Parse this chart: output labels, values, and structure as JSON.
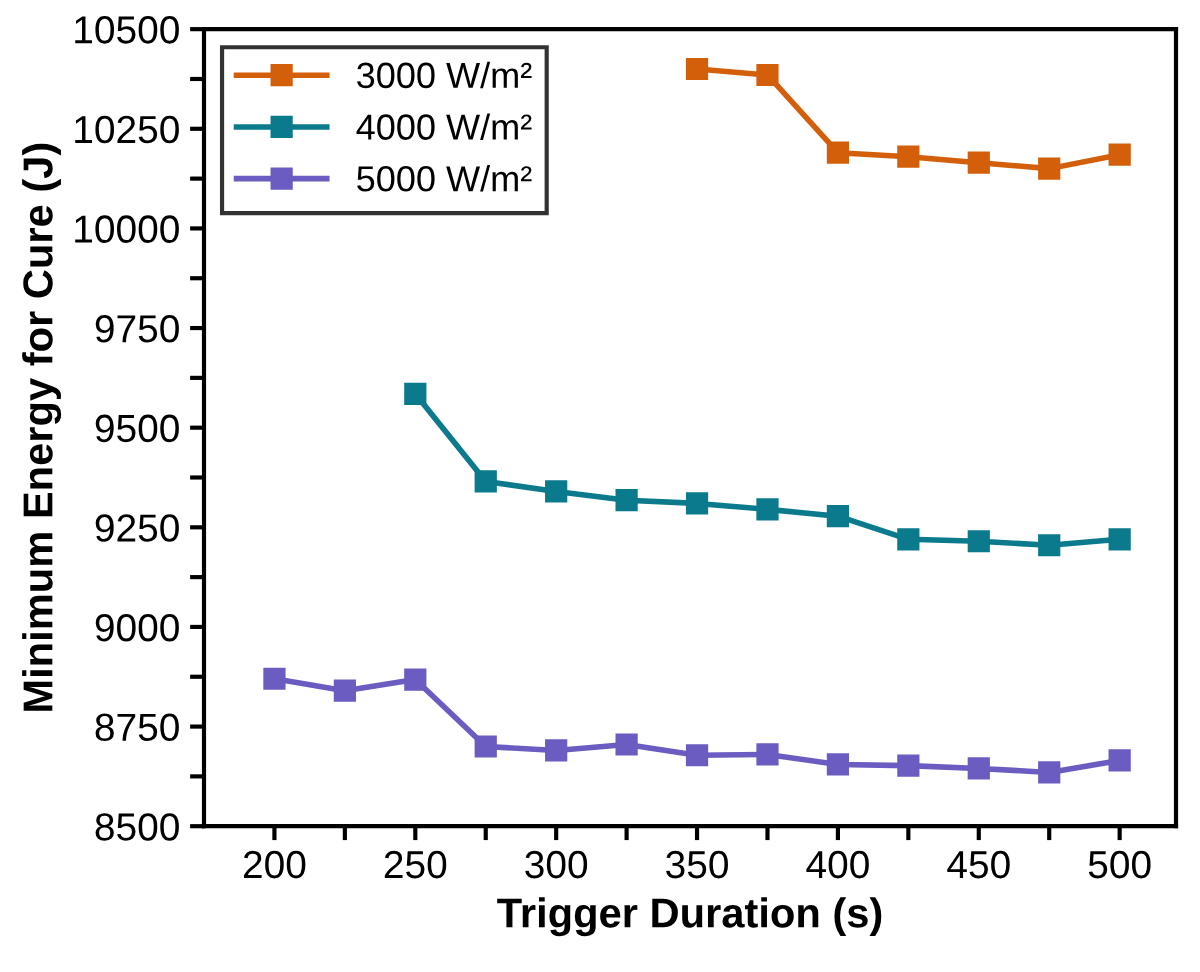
{
  "chart_data": {
    "type": "line",
    "xlabel": "Trigger Duration (s)",
    "ylabel": "Minimum Energy for Cure (J)",
    "xlim": [
      175,
      520
    ],
    "ylim": [
      8500,
      10500
    ],
    "xticks": [
      200,
      {
        "value": 225,
        "label": null
      },
      250,
      {
        "value": 275,
        "label": null
      },
      300,
      {
        "value": 325,
        "label": null
      },
      350,
      {
        "value": 375,
        "label": null
      },
      400,
      {
        "value": 425,
        "label": null
      },
      450,
      {
        "value": 475,
        "label": null
      },
      500
    ],
    "yticks": [
      8500,
      {
        "value": 8625,
        "label": null
      },
      8750,
      {
        "value": 8875,
        "label": null
      },
      9000,
      {
        "value": 9125,
        "label": null
      },
      9250,
      {
        "value": 9375,
        "label": null
      },
      9500,
      {
        "value": 9625,
        "label": null
      },
      9750,
      {
        "value": 9875,
        "label": null
      },
      10000,
      {
        "value": 10125,
        "label": null
      },
      10250,
      {
        "value": 10375,
        "label": null
      },
      10500
    ],
    "marker": "square",
    "line_style": "solid",
    "grid": false,
    "legend": "top left",
    "series": [
      {
        "name": "3000 W/m²",
        "color": "#d35f0a",
        "x": [
          350,
          375,
          400,
          425,
          450,
          475,
          500
        ],
        "values": [
          10400,
          10385,
          10190,
          10180,
          10165,
          10150,
          10185
        ]
      },
      {
        "name": "4000 W/m²",
        "color": "#0a7a8c",
        "x": [
          250,
          275,
          300,
          325,
          350,
          375,
          400,
          425,
          450,
          475,
          500
        ],
        "values": [
          9585,
          9365,
          9340,
          9318,
          9310,
          9295,
          9278,
          9220,
          9215,
          9205,
          9220
        ]
      },
      {
        "name": "5000 W/m²",
        "color": "#6a5cc0",
        "x": [
          200,
          225,
          250,
          275,
          300,
          325,
          350,
          375,
          400,
          425,
          450,
          475,
          500
        ],
        "values": [
          8870,
          8840,
          8868,
          8700,
          8690,
          8705,
          8678,
          8680,
          8655,
          8652,
          8645,
          8635,
          8665
        ]
      }
    ]
  }
}
